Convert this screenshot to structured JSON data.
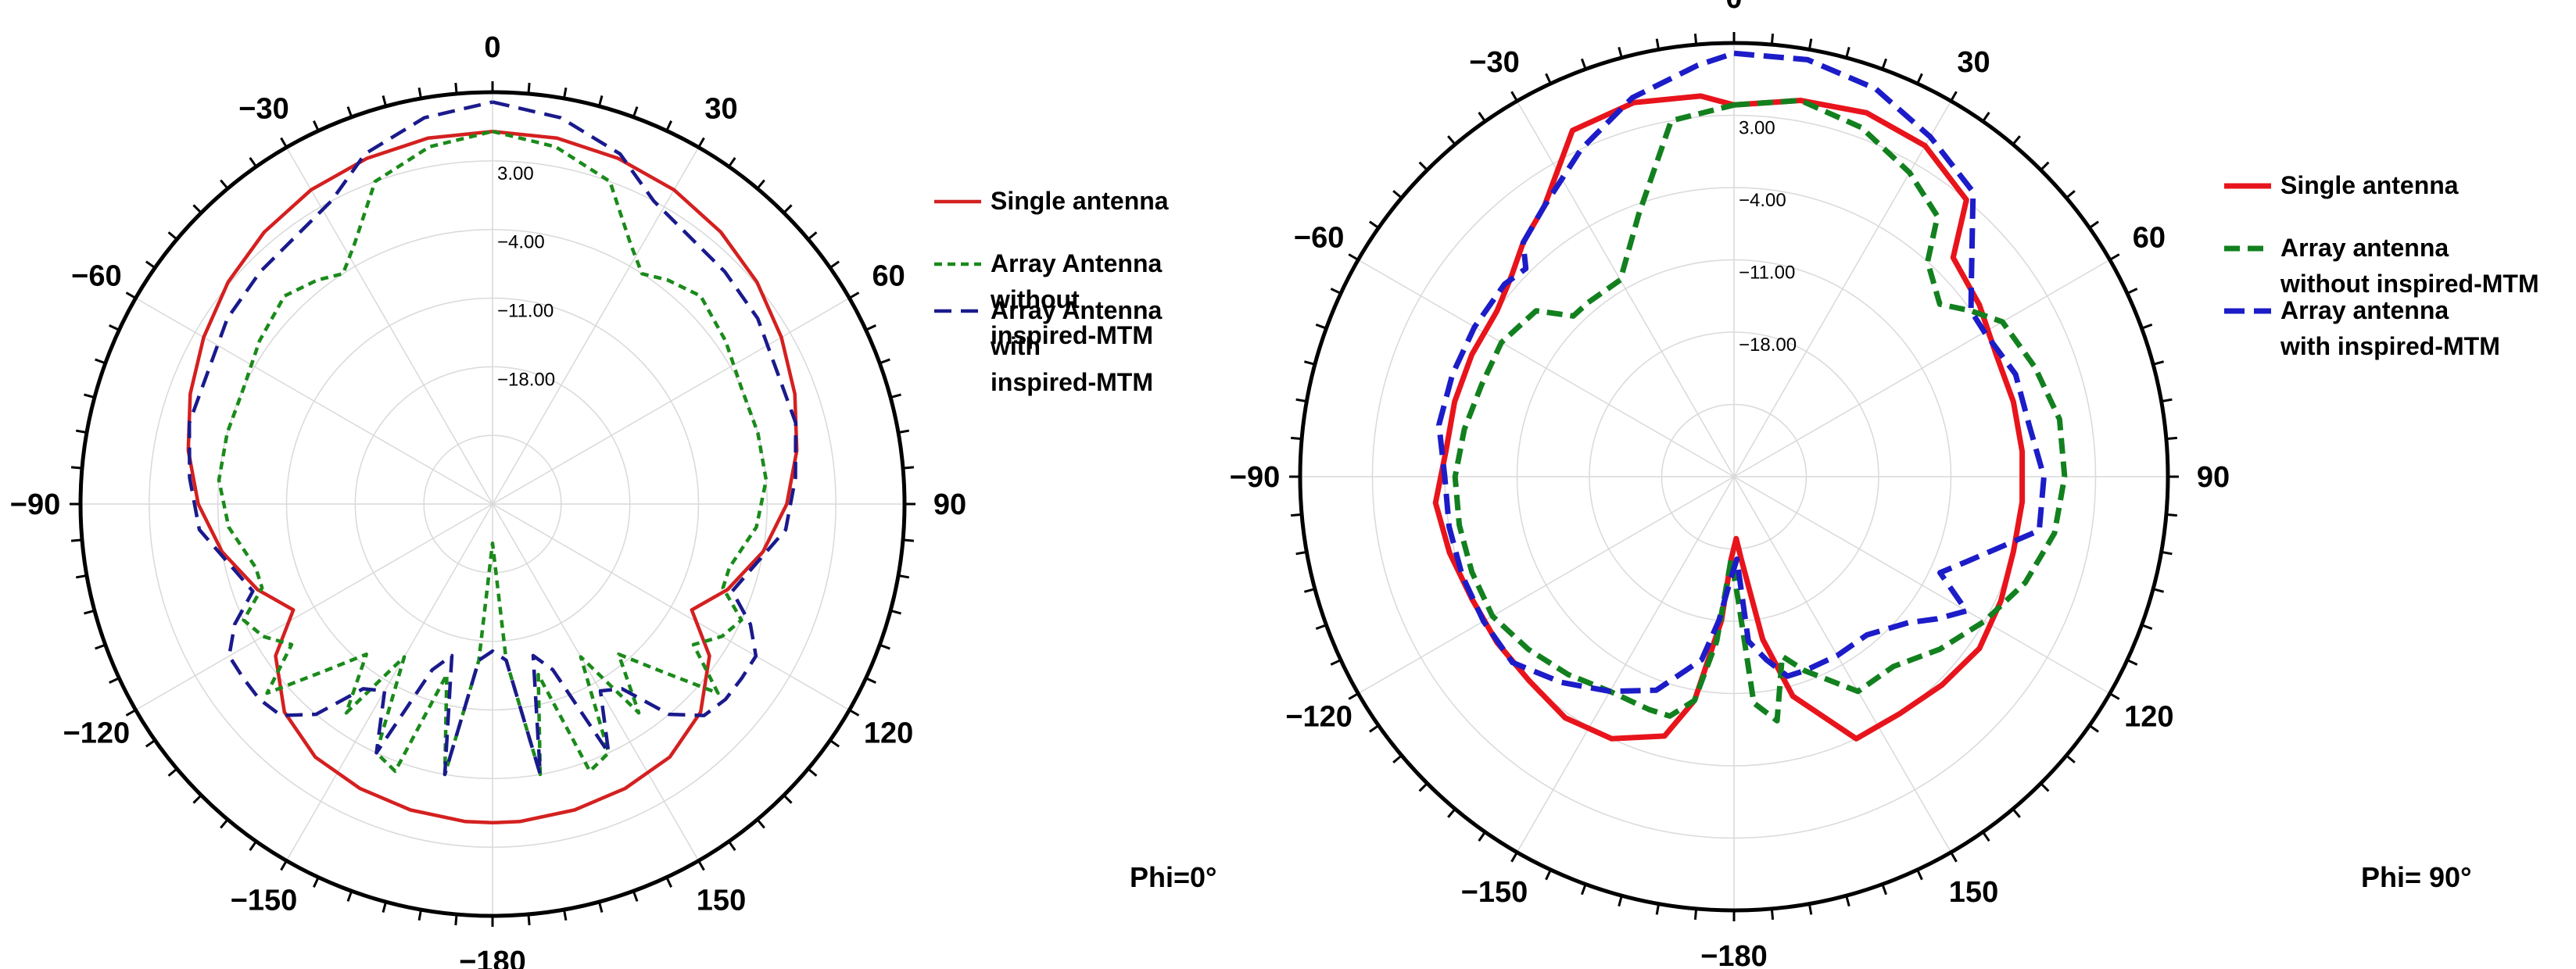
{
  "chart_data": [
    {
      "type": "polar",
      "panel": "left",
      "angle_ticks": [
        "0",
        "30",
        "60",
        "90",
        "120",
        "150",
        "−180",
        "−150",
        "−120",
        "−90",
        "−60",
        "−30"
      ],
      "angle_tick_values": [
        0,
        30,
        60,
        90,
        120,
        150,
        180,
        -150,
        -120,
        -90,
        -60,
        -30
      ],
      "radial_labels": [
        "3.00",
        "−4.00",
        "−11.00",
        "−18.00"
      ],
      "radial_values": [
        3,
        -4,
        -11,
        -18
      ],
      "rlim": [
        -32,
        10
      ],
      "annotation": "Phi=0°",
      "series": [
        {
          "name": "Single antenna",
          "label_lines": [
            "Single antenna"
          ],
          "color": "#d42020",
          "dash": "solid",
          "angles": [
            0,
            10,
            20,
            30,
            40,
            50,
            60,
            70,
            80,
            90,
            100,
            110,
            118,
            125,
            135,
            145,
            155,
            165,
            175,
            180,
            185,
            195,
            205,
            215,
            225,
            235,
            242,
            250,
            260,
            270,
            280,
            290,
            300,
            310,
            320,
            330,
            340,
            350,
            360
          ],
          "values": [
            6,
            5.9,
            5.5,
            5,
            4.2,
            3.2,
            2,
            0.8,
            -0.5,
            -2,
            -4,
            -6.5,
            -9,
            -5,
            -2,
            -0.5,
            0,
            0.3,
            0.5,
            0.5,
            0.5,
            0.3,
            0,
            -0.5,
            -2,
            -5,
            -9,
            -6.5,
            -4,
            -2,
            -0.5,
            0.8,
            2,
            3.2,
            4.2,
            5,
            5.5,
            5.9,
            6
          ]
        },
        {
          "name": "Array Antenna without inspired-MTM",
          "label_lines": [
            "Array Antenna",
            "without",
            "inspired-MTM"
          ],
          "color": "#1a8a1a",
          "dash": "short",
          "angles": [
            0,
            10,
            20,
            28,
            33,
            38,
            45,
            55,
            65,
            75,
            85,
            95,
            105,
            110,
            115,
            120,
            125,
            130,
            135,
            140,
            145,
            150,
            155,
            160,
            165,
            170,
            175,
            180,
            185,
            190,
            195,
            200,
            205,
            210,
            215,
            220,
            225,
            230,
            235,
            240,
            245,
            250,
            255,
            265,
            275,
            285,
            295,
            305,
            315,
            322,
            327,
            332,
            340,
            350,
            360
          ],
          "values": [
            6,
            5,
            3,
            -2,
            -4,
            -3,
            -2,
            -3,
            -4,
            -4,
            -4,
            -5,
            -7,
            -7,
            -4,
            -5,
            -7,
            -2,
            -8,
            -12,
            -6,
            -14,
            -4,
            -3,
            -14,
            -4,
            -16,
            -28,
            -16,
            -4,
            -14,
            -3,
            -4,
            -14,
            -6,
            -12,
            -8,
            -2,
            -7,
            -5,
            -4,
            -7,
            -7,
            -5,
            -4,
            -4,
            -4,
            -3,
            -2,
            -3,
            -4,
            -2,
            3,
            5,
            6
          ]
        },
        {
          "name": "Array Antenna with inspired-MTM",
          "label_lines": [
            "Array Antenna",
            "with",
            "inspired-MTM"
          ],
          "color": "#1a1a8c",
          "dash": "long",
          "angles": [
            0,
            10,
            20,
            28,
            35,
            45,
            55,
            65,
            75,
            85,
            95,
            105,
            110,
            115,
            120,
            125,
            130,
            135,
            140,
            145,
            150,
            155,
            160,
            165,
            170,
            175,
            180,
            185,
            190,
            195,
            200,
            205,
            210,
            215,
            220,
            225,
            230,
            235,
            240,
            245,
            250,
            255,
            265,
            275,
            285,
            295,
            305,
            315,
            325,
            332,
            340,
            350,
            360
          ],
          "values": [
            9,
            8,
            6,
            3,
            2,
            1.5,
            1,
            0,
            0,
            -1,
            -2,
            -5,
            -6,
            -3,
            -1,
            -1,
            -1,
            -1.5,
            -4,
            -9,
            -10,
            -4,
            -14,
            -16,
            -4,
            -16,
            -17,
            -16,
            -4,
            -16,
            -14,
            -4,
            -10,
            -9,
            -4,
            -1.5,
            -1,
            -1,
            -1,
            -3,
            -6,
            -5,
            -2,
            -1,
            0,
            0,
            1,
            1.5,
            2,
            3,
            6,
            8,
            9
          ]
        }
      ]
    },
    {
      "type": "polar",
      "panel": "right",
      "angle_ticks": [
        "0",
        "30",
        "60",
        "90",
        "120",
        "150",
        "−180",
        "−150",
        "−120",
        "−90",
        "−60",
        "−30"
      ],
      "angle_tick_values": [
        0,
        30,
        60,
        90,
        120,
        150,
        180,
        -150,
        -120,
        -90,
        -60,
        -30
      ],
      "radial_labels": [
        "3.00",
        "−4.00",
        "−11.00",
        "−18.00"
      ],
      "radial_values": [
        3,
        -4,
        -11,
        -18
      ],
      "rlim": [
        -32,
        10
      ],
      "annotation": "Phi= 90°",
      "series": [
        {
          "name": "Single antenna",
          "label_lines": [
            "Single antenna"
          ],
          "color": "#e8141c",
          "dash": "solid",
          "angles": [
            0,
            10,
            20,
            30,
            40,
            45,
            55,
            65,
            75,
            85,
            95,
            105,
            115,
            125,
            135,
            145,
            155,
            165,
            170,
            175,
            178,
            182,
            185,
            190,
            195,
            205,
            215,
            225,
            235,
            245,
            255,
            265,
            275,
            285,
            295,
            305,
            312,
            318,
            325,
            335,
            345,
            355,
            360
          ],
          "values": [
            4,
            5,
            5.5,
            5,
            3,
            -2,
            -3,
            -4,
            -4,
            -4,
            -4,
            -4,
            -3.5,
            -3,
            -3.5,
            -4,
            -4,
            -10,
            -16,
            -24,
            -26,
            -24,
            -18,
            -10,
            -6,
            -4,
            -3.5,
            -4,
            -4,
            -4,
            -3.5,
            -3,
            -4,
            -4,
            -4,
            -4,
            -3,
            -1.5,
            0,
            5,
            5.5,
            5,
            4
          ]
        },
        {
          "name": "Array antenna without inspired-MTM",
          "label_lines": [
            "Array antenna",
            "without inspired-MTM"
          ],
          "color": "#12801e",
          "dash": "medium",
          "angles": [
            0,
            10,
            20,
            30,
            38,
            42,
            50,
            55,
            60,
            70,
            80,
            90,
            100,
            110,
            120,
            130,
            140,
            150,
            160,
            165,
            170,
            175,
            178,
            182,
            186,
            190,
            195,
            200,
            210,
            220,
            230,
            240,
            250,
            260,
            270,
            280,
            290,
            300,
            310,
            315,
            320,
            330,
            340,
            350,
            360
          ],
          "values": [
            4,
            5,
            4,
            2,
            0,
            -4,
            -6,
            -4,
            -2,
            -1,
            0,
            0,
            -0.5,
            -2,
            -4,
            -6,
            -8,
            -8,
            -12,
            -14,
            -8,
            -10,
            -20,
            -24,
            -16,
            -10,
            -8,
            -8,
            -8,
            -7,
            -6,
            -5,
            -5,
            -5,
            -5,
            -5.5,
            -6,
            -6,
            -7,
            -10,
            -10,
            -10,
            -5,
            3,
            4
          ]
        },
        {
          "name": "Array antenna with inspired-MTM",
          "label_lines": [
            "Array antenna",
            "with inspired-MTM"
          ],
          "color": "#1c1cc8",
          "dash": "long",
          "angles": [
            0,
            10,
            20,
            30,
            40,
            50,
            55,
            60,
            70,
            80,
            90,
            100,
            110,
            115,
            120,
            125,
            130,
            140,
            150,
            160,
            165,
            170,
            175,
            178,
            182,
            186,
            190,
            200,
            210,
            220,
            230,
            240,
            250,
            260,
            270,
            280,
            290,
            300,
            310,
            315,
            318,
            325,
            335,
            345,
            355,
            360
          ],
          "values": [
            9,
            9,
            8,
            6,
            4,
            -2,
            -4,
            -4,
            -3,
            -3,
            -2,
            -2,
            -8,
            -10,
            -6,
            -8,
            -10,
            -12,
            -12,
            -12,
            -12,
            -14,
            -16,
            -24,
            -22,
            -18,
            -14,
            -10,
            -8,
            -6,
            -4,
            -4,
            -4,
            -4,
            -4,
            -3,
            -3,
            -3,
            -3,
            -3.5,
            -1.5,
            0,
            3,
            6,
            8,
            9
          ]
        }
      ]
    }
  ]
}
